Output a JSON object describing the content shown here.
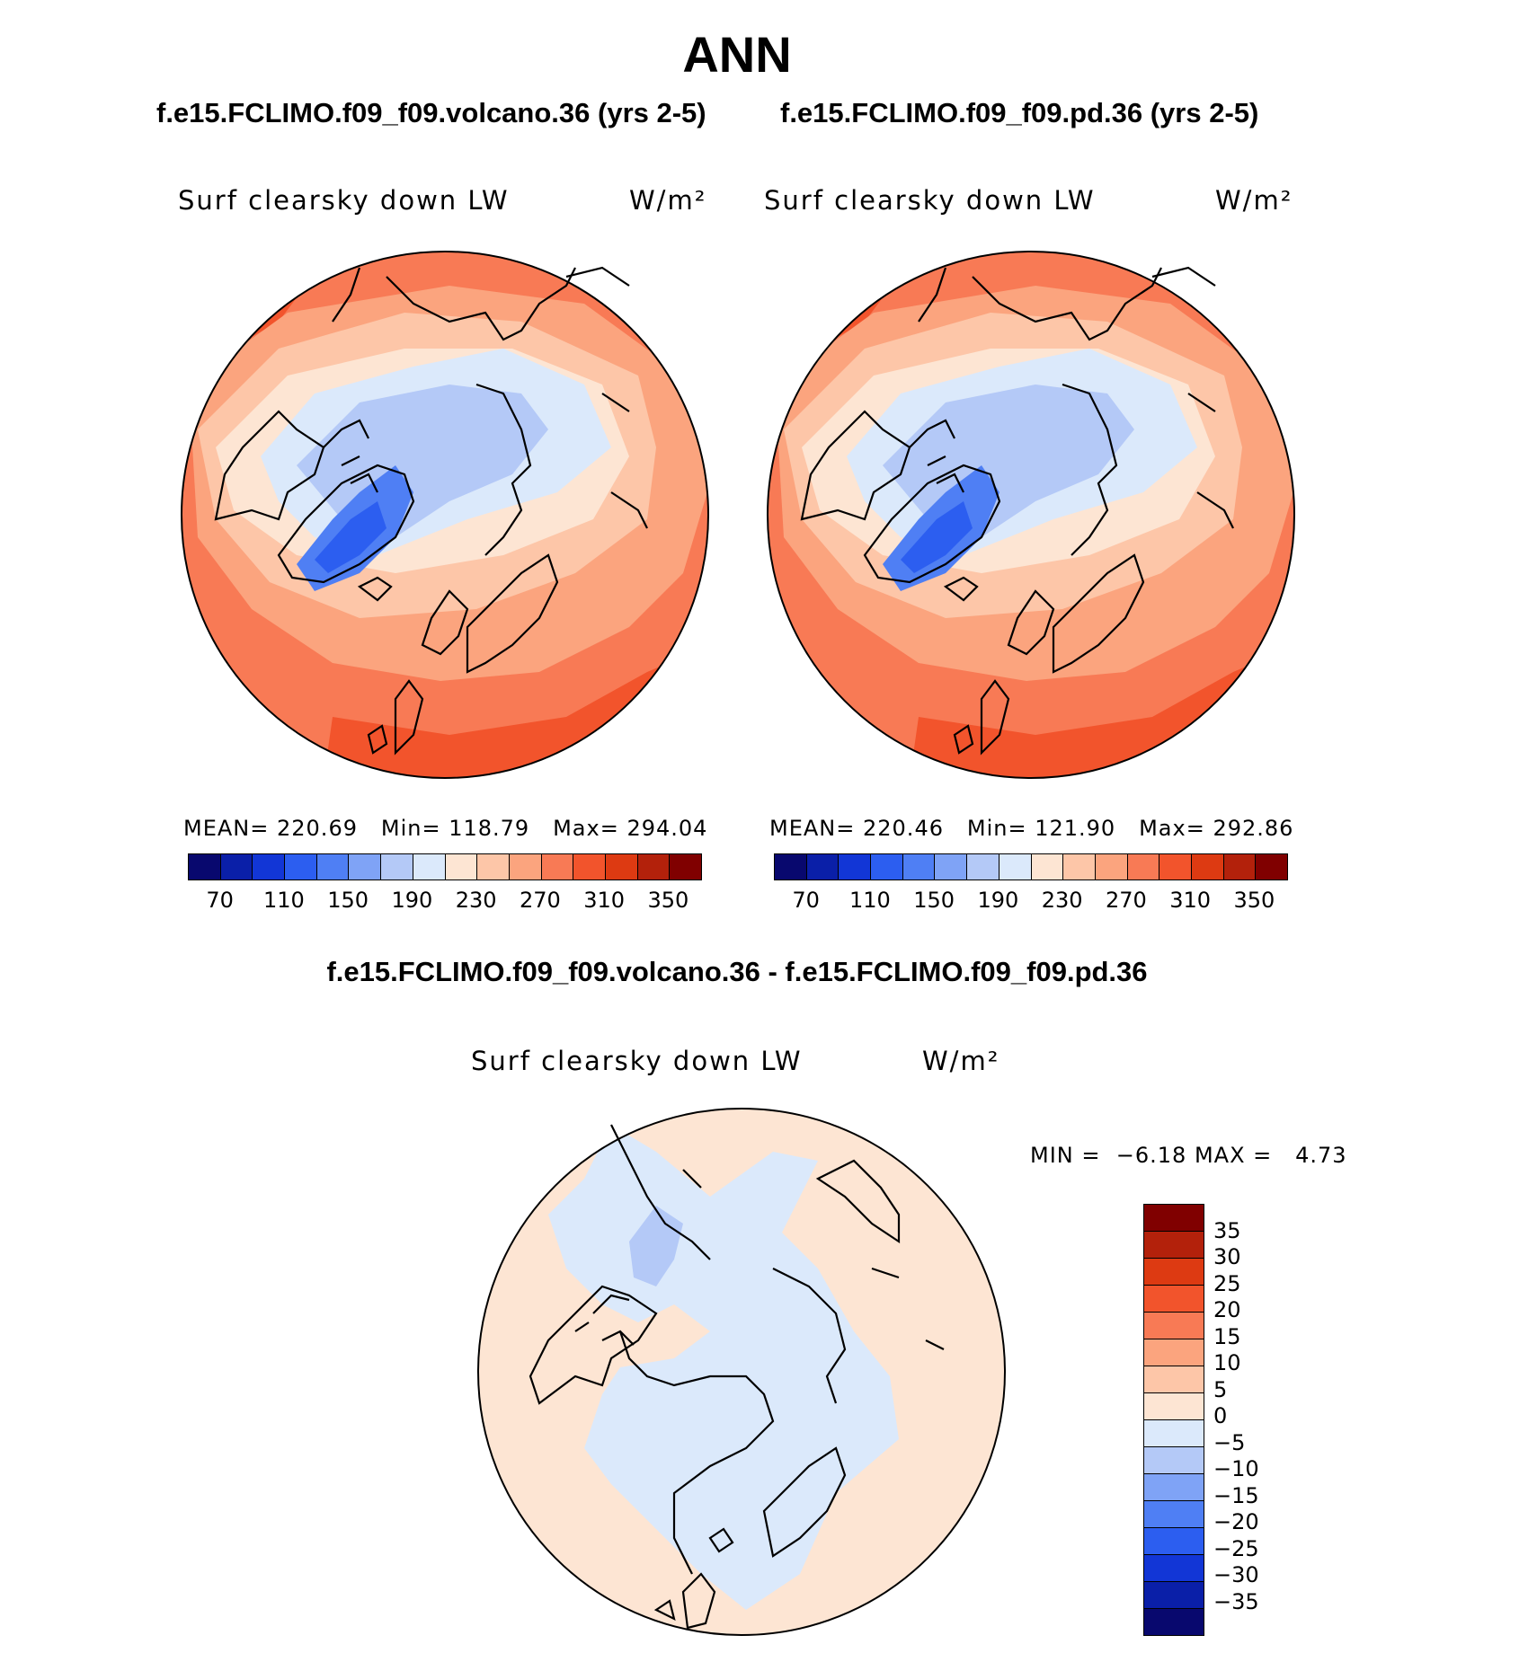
{
  "title": "ANN",
  "left_case": "f.e15.FCLIMO.f09_f09.volcano.36 (yrs 2-5)",
  "right_case": "f.e15.FCLIMO.f09_f09.pd.36 (yrs 2-5)",
  "diff_title": "f.e15.FCLIMO.f09_f09.volcano.36 - f.e15.FCLIMO.f09_f09.pd.36",
  "panels": {
    "left": {
      "variable": "Surf clearsky down LW",
      "units": "W/m²",
      "mean_label": "MEAN=",
      "mean": "220.69",
      "min_label": "Min=",
      "min": "118.79",
      "max_label": "Max=",
      "max": "294.04"
    },
    "right": {
      "variable": "Surf clearsky down LW",
      "units": "W/m²",
      "mean_label": "MEAN=",
      "mean": "220.46",
      "min_label": "Min=",
      "min": "121.90",
      "max_label": "Max=",
      "max": "292.86"
    },
    "diff": {
      "variable": "Surf clearsky down LW",
      "units": "W/m²",
      "min_label": "MIN =",
      "min": "−6.18",
      "max_label": "MAX =",
      "max": "4.73"
    }
  },
  "abs_colorbar": {
    "colors": [
      "#08086e",
      "#0a1fa8",
      "#1236d6",
      "#2c5ef0",
      "#4f7ff4",
      "#7fa3f6",
      "#b4c9f7",
      "#dbe9fb",
      "#fde5d3",
      "#fdc6a8",
      "#fba47e",
      "#f87a55",
      "#f2542c",
      "#dd3a12",
      "#b3210b",
      "#800000"
    ],
    "tick_labels": [
      "70",
      "110",
      "150",
      "190",
      "230",
      "270",
      "310",
      "350"
    ]
  },
  "diff_colorbar": {
    "colors_top_to_bottom": [
      "#800000",
      "#b3210b",
      "#dd3a12",
      "#f2542c",
      "#f87a55",
      "#fba47e",
      "#fdc6a8",
      "#fde5d3",
      "#dbe9fb",
      "#b4c9f7",
      "#7fa3f6",
      "#4f7ff4",
      "#2c5ef0",
      "#1236d6",
      "#0a1fa8",
      "#08086e"
    ],
    "tick_labels": [
      "35",
      "30",
      "25",
      "20",
      "15",
      "10",
      "5",
      "0",
      "−5",
      "−10",
      "−15",
      "−20",
      "−25",
      "−30",
      "−35"
    ]
  }
}
